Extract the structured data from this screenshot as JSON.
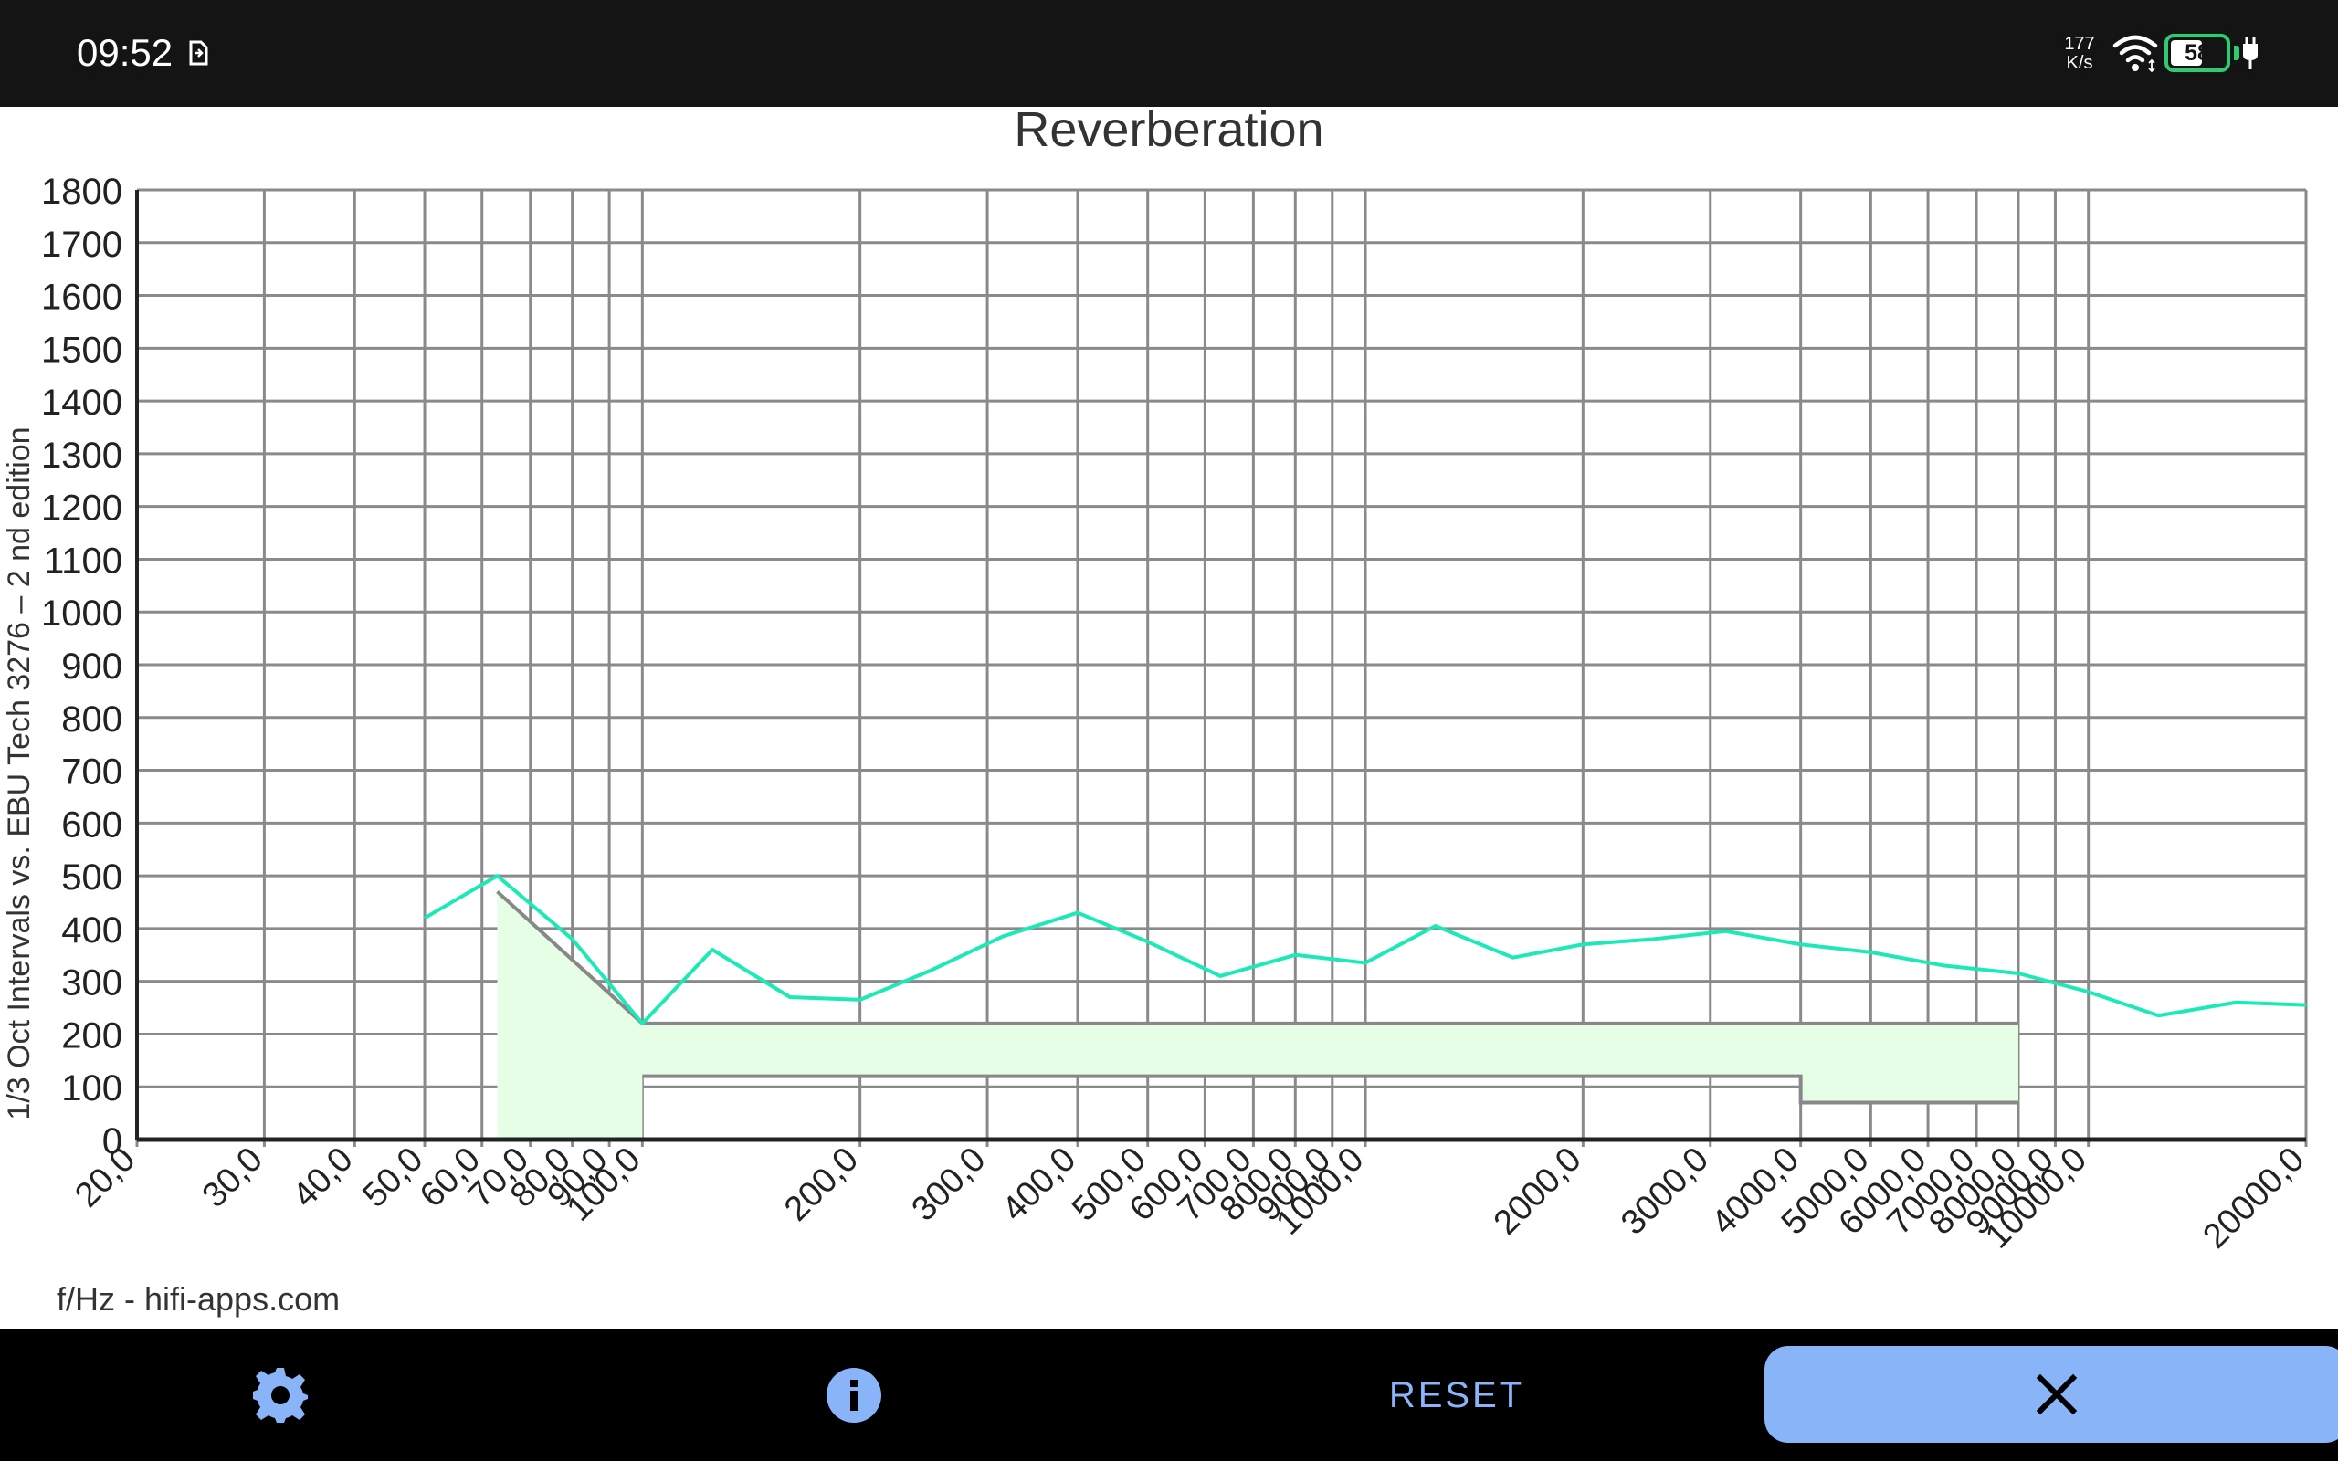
{
  "status_bar": {
    "time": "09:52",
    "net_speed_value": "177",
    "net_speed_unit": "K/s",
    "battery_level": "58",
    "sim_icon": "sim-card-icon",
    "wifi_icon": "wifi-icon",
    "charging_icon": "plug-icon"
  },
  "chart_data": {
    "type": "line",
    "title": "Reverberation",
    "ylabel": "1/3 Oct Intervals vs. EBU Tech 3276 – 2 nd edition",
    "xlabel": "f/Hz - hifi-apps.com",
    "x_scale": "log",
    "xlim": [
      20,
      20000
    ],
    "ylim": [
      0,
      1800
    ],
    "grid": true,
    "yticks": [
      0,
      100,
      200,
      300,
      400,
      500,
      600,
      700,
      800,
      900,
      1000,
      1100,
      1200,
      1300,
      1400,
      1500,
      1600,
      1700,
      1800
    ],
    "xticks": [
      20,
      30,
      40,
      50,
      60,
      70,
      80,
      90,
      100,
      200,
      300,
      400,
      500,
      600,
      700,
      800,
      900,
      1000,
      2000,
      3000,
      4000,
      5000,
      6000,
      7000,
      8000,
      9000,
      10000,
      20000
    ],
    "xtick_labels": [
      "20,0",
      "30,0",
      "40,0",
      "50,0",
      "60,0",
      "70,0",
      "80,0",
      "90,0",
      "100,0",
      "200,0",
      "300,0",
      "400,0",
      "500,0",
      "600,0",
      "700,0",
      "800,0",
      "900,0",
      "1000,0",
      "2000,0",
      "3000,0",
      "4000,0",
      "5000,0",
      "6000,0",
      "7000,0",
      "8000,0",
      "9000,0",
      "10000,0",
      "20000,0"
    ],
    "series": [
      {
        "color": "#1de9b6",
        "x": [
          50,
          63,
          80,
          100,
          125,
          160,
          200,
          250,
          315,
          400,
          500,
          630,
          800,
          1000,
          1250,
          1600,
          2000,
          2500,
          3150,
          4000,
          5000,
          6300,
          8000,
          10000,
          12500,
          16000,
          20000
        ],
        "y": [
          420,
          500,
          380,
          220,
          360,
          270,
          265,
          320,
          385,
          430,
          375,
          310,
          350,
          335,
          405,
          345,
          370,
          380,
          395,
          370,
          355,
          330,
          315,
          280,
          235,
          260,
          255
        ]
      }
    ],
    "tolerance": {
      "fill": "#e6fde6",
      "stroke": "#888888",
      "upper": {
        "x": [
          63,
          100,
          100,
          8000
        ],
        "y": [
          470,
          220,
          220,
          220
        ]
      },
      "lower": {
        "x": [
          100,
          4000,
          4000,
          8000
        ],
        "y": [
          120,
          120,
          70,
          70
        ]
      }
    }
  },
  "toolbar": {
    "settings_icon": "gear-icon",
    "info_icon": "info-icon",
    "reset_label": "RESET",
    "close_icon": "close-icon",
    "accent": "#8ab4f8"
  }
}
